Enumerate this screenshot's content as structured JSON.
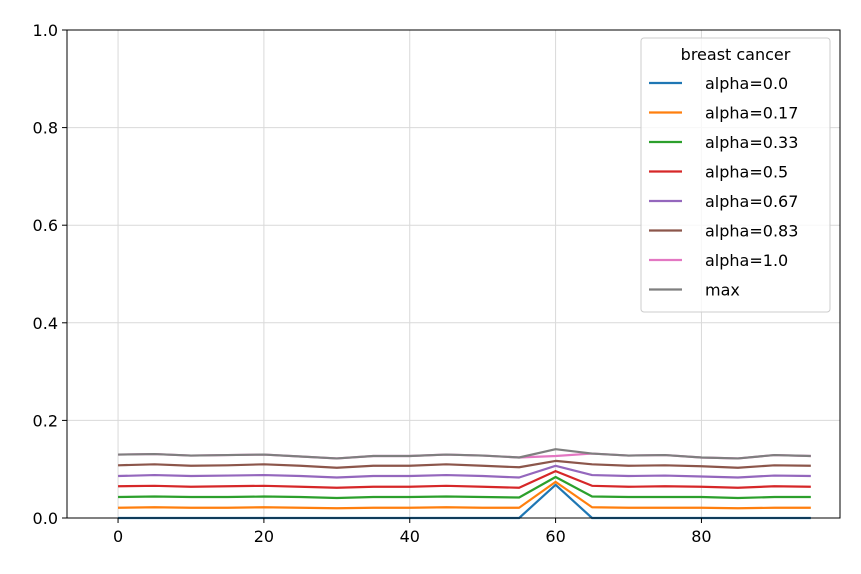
{
  "chart_data": {
    "type": "line",
    "legend_title": "breast cancer",
    "legend_position": "top-right",
    "grid": true,
    "xlim": [
      -7,
      99
    ],
    "ylim": [
      0.0,
      1.0
    ],
    "xticks": [
      0,
      20,
      40,
      60,
      80
    ],
    "xtick_labels": [
      "0",
      "20",
      "40",
      "60",
      "80"
    ],
    "yticks": [
      0.0,
      0.2,
      0.4,
      0.6,
      0.8,
      1.0
    ],
    "ytick_labels": [
      "0.0",
      "0.2",
      "0.4",
      "0.6",
      "0.8",
      "1.0"
    ],
    "x": [
      0,
      5,
      10,
      15,
      20,
      25,
      30,
      35,
      40,
      45,
      50,
      55,
      60,
      65,
      70,
      75,
      80,
      85,
      90,
      95
    ],
    "series": [
      {
        "name": "alpha=0.0",
        "color": "#1f77b4",
        "values": [
          0,
          0,
          0,
          0,
          0,
          0,
          0,
          0,
          0,
          0,
          0,
          0,
          0.068,
          0,
          0,
          0,
          0,
          0,
          0,
          0
        ]
      },
      {
        "name": "alpha=0.17",
        "color": "#ff7f0e",
        "values": [
          0.021,
          0.022,
          0.021,
          0.021,
          0.022,
          0.021,
          0.02,
          0.021,
          0.021,
          0.022,
          0.021,
          0.021,
          0.074,
          0.022,
          0.021,
          0.021,
          0.021,
          0.02,
          0.021,
          0.021
        ]
      },
      {
        "name": "alpha=0.33",
        "color": "#2ca02c",
        "values": [
          0.043,
          0.044,
          0.043,
          0.043,
          0.044,
          0.043,
          0.041,
          0.043,
          0.043,
          0.044,
          0.043,
          0.042,
          0.084,
          0.044,
          0.043,
          0.043,
          0.043,
          0.041,
          0.043,
          0.043
        ]
      },
      {
        "name": "alpha=0.5",
        "color": "#d62728",
        "values": [
          0.065,
          0.066,
          0.064,
          0.065,
          0.066,
          0.064,
          0.062,
          0.064,
          0.064,
          0.066,
          0.064,
          0.062,
          0.096,
          0.066,
          0.064,
          0.065,
          0.064,
          0.062,
          0.065,
          0.064
        ]
      },
      {
        "name": "alpha=0.67",
        "color": "#9467bd",
        "values": [
          0.086,
          0.088,
          0.086,
          0.087,
          0.088,
          0.086,
          0.083,
          0.086,
          0.086,
          0.088,
          0.086,
          0.083,
          0.107,
          0.088,
          0.086,
          0.087,
          0.085,
          0.083,
          0.087,
          0.086
        ]
      },
      {
        "name": "alpha=0.83",
        "color": "#8c564b",
        "values": [
          0.108,
          0.11,
          0.107,
          0.108,
          0.11,
          0.107,
          0.103,
          0.107,
          0.107,
          0.11,
          0.107,
          0.104,
          0.117,
          0.11,
          0.107,
          0.108,
          0.106,
          0.103,
          0.108,
          0.107
        ]
      },
      {
        "name": "alpha=1.0",
        "color": "#e377c2",
        "values": [
          0.13,
          0.131,
          0.128,
          0.129,
          0.13,
          0.126,
          0.122,
          0.127,
          0.127,
          0.13,
          0.128,
          0.124,
          0.127,
          0.132,
          0.128,
          0.129,
          0.124,
          0.122,
          0.129,
          0.127
        ]
      },
      {
        "name": "max",
        "color": "#7f7f7f",
        "values": [
          0.13,
          0.131,
          0.128,
          0.129,
          0.13,
          0.126,
          0.122,
          0.127,
          0.127,
          0.13,
          0.128,
          0.124,
          0.141,
          0.132,
          0.128,
          0.129,
          0.124,
          0.122,
          0.129,
          0.127
        ]
      }
    ]
  }
}
